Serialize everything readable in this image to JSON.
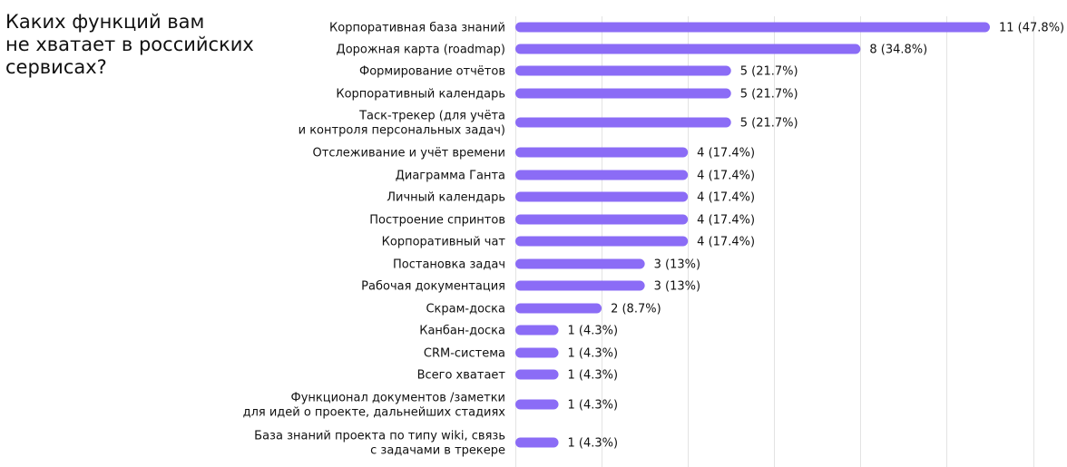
{
  "chart_data": {
    "type": "bar",
    "orientation": "horizontal",
    "title": "Каких функций вам\nне хватает в российских\nсервисах?",
    "xlim": [
      0,
      13
    ],
    "grid": true,
    "bar_color": "#8b6cf6",
    "categories": [
      "Корпоративная база знаний",
      "Дорожная карта (roadmap)",
      "Формирование отчётов",
      "Корпоративный календарь",
      "Таск-трекер (для учёта\nи контроля персональных задач)",
      "Отслеживание и учёт времени",
      "Диаграмма Ганта",
      "Личный календарь",
      "Построение спринтов",
      "Корпоративный чат",
      "Постановка задач",
      "Рабочая документация",
      "Скрам-доска",
      "Канбан-доска",
      "CRM-система",
      "Всего хватает",
      "Функционал документов /заметки\nдля идей о проекте, дальнейших стадиях",
      "База знаний проекта по типу wiki, связь\nс задачами в трекере"
    ],
    "values": [
      11,
      8,
      5,
      5,
      5,
      4,
      4,
      4,
      4,
      4,
      3,
      3,
      2,
      1,
      1,
      1,
      1,
      1
    ],
    "value_labels": [
      "11 (47.8%)",
      "8 (34.8%)",
      "5 (21.7%)",
      "5 (21.7%)",
      "5 (21.7%)",
      "4 (17.4%)",
      "4 (17.4%)",
      "4 (17.4%)",
      "4 (17.4%)",
      "4 (17.4%)",
      "3 (13%)",
      "3 (13%)",
      "2 (8.7%)",
      "1 (4.3%)",
      "1 (4.3%)",
      "1 (4.3%)",
      "1 (4.3%)",
      "1 (4.3%)"
    ]
  }
}
